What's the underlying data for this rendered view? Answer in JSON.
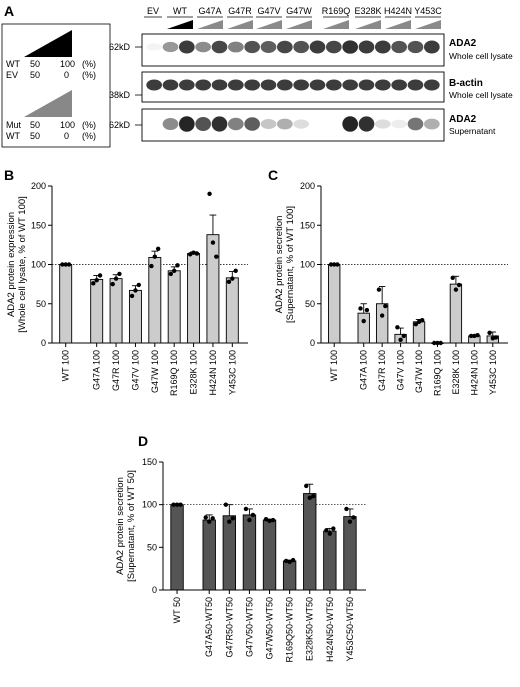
{
  "panel_a": {
    "letter": "A",
    "legend": {
      "wt_row1": {
        "label": "WT",
        "v1": "50",
        "v2": "100",
        "unit": "(%)"
      },
      "ev_row": {
        "label": "EV",
        "v1": "50",
        "v2": "0",
        "unit": "(%)"
      },
      "mut_row": {
        "label": "Mut",
        "v1": "50",
        "v2": "100",
        "unit": "(%)"
      },
      "wt_row2": {
        "label": "WT",
        "v1": "50",
        "v2": "0",
        "unit": "(%)"
      }
    },
    "lane_labels": [
      "EV",
      "WT",
      "G47A",
      "G47R",
      "G47V",
      "G47W",
      "R169Q",
      "E328K",
      "H424N",
      "Y453C"
    ],
    "blots": [
      {
        "marker": "62kD",
        "protein": "ADA2",
        "source": "Whole cell lysate",
        "band_intensity": [
          0.05,
          0.45,
          0.85,
          0.5,
          0.8,
          0.55,
          0.75,
          0.7,
          0.8,
          0.75,
          0.85,
          0.8,
          0.9,
          0.85,
          0.85,
          0.75,
          0.75,
          0.85
        ]
      },
      {
        "marker": "38kD",
        "protein": "B-actin",
        "source": "Whole cell lysate",
        "band_intensity": [
          0.85,
          0.85,
          0.85,
          0.85,
          0.85,
          0.85,
          0.85,
          0.85,
          0.85,
          0.85,
          0.85,
          0.85,
          0.85,
          0.85,
          0.85,
          0.85,
          0.85,
          0.85
        ]
      },
      {
        "marker": "62kD",
        "protein": "ADA2",
        "source": "Supernatant",
        "band_intensity": [
          0.02,
          0.5,
          0.95,
          0.75,
          0.9,
          0.55,
          0.7,
          0.25,
          0.35,
          0.15,
          0.02,
          0.02,
          0.95,
          0.9,
          0.15,
          0.08,
          0.6,
          0.35
        ]
      }
    ]
  },
  "chart_data": [
    {
      "panel": "B",
      "type": "bar",
      "ylabel": "ADA2 protein expression",
      "ylabel2": "[Whole cell lysate, % of WT 100]",
      "ylim": [
        0,
        200
      ],
      "yticks": [
        0,
        50,
        100,
        150,
        200
      ],
      "reference_line": 100,
      "categories": [
        "WT 100",
        "G47A 100",
        "G47R 100",
        "G47V 100",
        "G47W 100",
        "R169Q 100",
        "E328K 100",
        "H424N 100",
        "Y453C 100"
      ],
      "values": [
        100,
        81,
        82,
        67,
        109,
        92,
        114,
        138,
        83
      ],
      "errors": [
        0,
        5,
        5,
        6,
        8,
        5,
        2,
        25,
        8
      ],
      "points": [
        [
          100,
          100,
          100
        ],
        [
          76,
          80,
          86
        ],
        [
          75,
          82,
          88
        ],
        [
          60,
          67,
          74
        ],
        [
          98,
          110,
          120
        ],
        [
          88,
          92,
          99
        ],
        [
          113,
          115,
          114
        ],
        [
          190,
          128,
          110
        ],
        [
          78,
          82,
          92
        ]
      ],
      "bar_color": "#cccccc"
    },
    {
      "panel": "C",
      "type": "bar",
      "ylabel": "ADA2 protein secretion",
      "ylabel2": "[Supernatant, % of WT 100]",
      "ylim": [
        0,
        200
      ],
      "yticks": [
        0,
        50,
        100,
        150,
        200
      ],
      "reference_line": 100,
      "categories": [
        "WT 100",
        "G47A 100",
        "G47R 100",
        "G47V 100",
        "G47W 100",
        "R169Q 100",
        "E328K 100",
        "H424N 100",
        "Y453C 100"
      ],
      "values": [
        100,
        38,
        50,
        11,
        27,
        0,
        75,
        9,
        9
      ],
      "errors": [
        0,
        12,
        22,
        8,
        3,
        0,
        10,
        1,
        5
      ],
      "points": [
        [
          100,
          100,
          100
        ],
        [
          44,
          28,
          42
        ],
        [
          68,
          35,
          47
        ],
        [
          20,
          4,
          9
        ],
        [
          24,
          27,
          29
        ],
        [
          0,
          0,
          0
        ],
        [
          83,
          68,
          74
        ],
        [
          9,
          9,
          10
        ],
        [
          13,
          6,
          7
        ]
      ],
      "bar_color": "#cccccc"
    },
    {
      "panel": "D",
      "type": "bar",
      "ylabel": "ADA2 protein secretion",
      "ylabel2": "[Supernatant, % of WT 50]",
      "ylim": [
        0,
        150
      ],
      "yticks": [
        0,
        50,
        100,
        150
      ],
      "reference_line": 100,
      "categories": [
        "WT 50",
        "G47A50-WT50",
        "G47R50-WT50",
        "G47V50-WT50",
        "G47W50-WT50",
        "R169Q50-WT50",
        "E328K50-WT50",
        "H424N50-WT50",
        "Y453C50-WT50"
      ],
      "values": [
        100,
        82,
        87,
        88,
        82,
        34,
        113,
        69,
        86
      ],
      "errors": [
        0,
        6,
        13,
        7,
        1,
        1,
        11,
        3,
        9
      ],
      "points": [
        [
          100,
          100,
          100
        ],
        [
          85,
          80,
          84
        ],
        [
          100,
          80,
          84
        ],
        [
          95,
          82,
          88
        ],
        [
          83,
          81,
          82
        ],
        [
          34,
          33,
          35
        ],
        [
          122,
          108,
          110
        ],
        [
          70,
          66,
          72
        ],
        [
          95,
          80,
          85
        ]
      ],
      "bar_color": "#555555"
    }
  ]
}
